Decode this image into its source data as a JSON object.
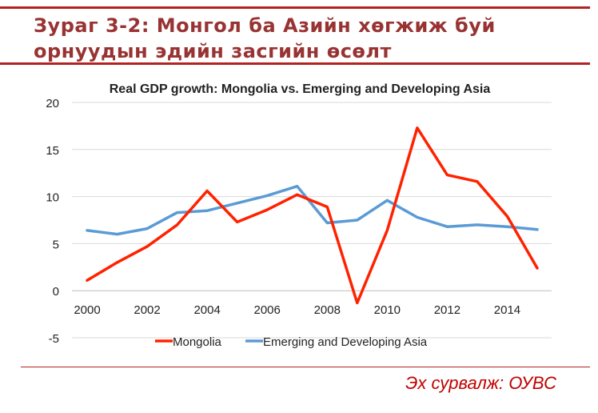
{
  "header": {
    "line1": "Зураг 3-2:  Монгол ба Азийн хөгжиж буй",
    "line2": "орнуудын эдийн засгийн өсөлт"
  },
  "source": "Эх сурвалж: ОУВС",
  "colors": {
    "accent": "#b22222",
    "mongolia": "#ff2200",
    "asia": "#5b9bd5",
    "grid": "#d9d9d9"
  },
  "chart_data": {
    "type": "line",
    "title": "Real GDP growth: Mongolia vs. Emerging and Developing Asia",
    "x": [
      2000,
      2001,
      2002,
      2003,
      2004,
      2005,
      2006,
      2007,
      2008,
      2009,
      2010,
      2011,
      2012,
      2013,
      2014,
      2015
    ],
    "xticks": [
      "2000",
      "2002",
      "2004",
      "2006",
      "2008",
      "2010",
      "2012",
      "2014"
    ],
    "xlim": [
      2000,
      2015
    ],
    "ylim": [
      -5,
      20
    ],
    "yticks": [
      "-5",
      "0",
      "5",
      "10",
      "15",
      "20"
    ],
    "grid": true,
    "legend_position": "bottom",
    "series": [
      {
        "name": "Mongolia",
        "color": "#ff2200",
        "values": [
          1.1,
          3.0,
          4.7,
          7.0,
          10.6,
          7.3,
          8.6,
          10.2,
          8.9,
          -1.3,
          6.4,
          17.3,
          12.3,
          11.6,
          7.9,
          2.4
        ]
      },
      {
        "name": "Emerging and Developing Asia",
        "color": "#5b9bd5",
        "values": [
          6.4,
          6.0,
          6.6,
          8.3,
          8.5,
          9.3,
          10.1,
          11.1,
          7.2,
          7.5,
          9.6,
          7.8,
          6.8,
          7.0,
          6.8,
          6.5
        ]
      }
    ]
  }
}
